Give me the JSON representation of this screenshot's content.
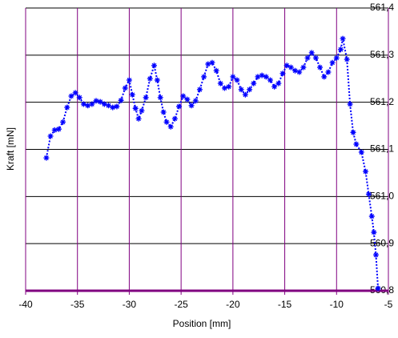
{
  "chart_data": {
    "type": "line",
    "x_label": "Position [mm]",
    "y_label": "Kraft [mN]",
    "x": [
      -38,
      -37.6,
      -37.2,
      -36.8,
      -36.4,
      -36.0,
      -35.6,
      -35.2,
      -34.8,
      -34.4,
      -34.0,
      -33.6,
      -33.2,
      -32.8,
      -32.4,
      -32.0,
      -31.6,
      -31.2,
      -30.8,
      -30.4,
      -30.0,
      -29.7,
      -29.4,
      -29.1,
      -28.8,
      -28.4,
      -28.0,
      -27.6,
      -27.3,
      -27.0,
      -26.7,
      -26.4,
      -26.0,
      -25.6,
      -25.2,
      -24.8,
      -24.4,
      -24.0,
      -23.6,
      -23.2,
      -22.8,
      -22.4,
      -22.0,
      -21.6,
      -21.2,
      -20.8,
      -20.4,
      -20.0,
      -19.6,
      -19.2,
      -18.8,
      -18.4,
      -18.0,
      -17.6,
      -17.2,
      -16.8,
      -16.4,
      -16.0,
      -15.6,
      -15.2,
      -14.8,
      -14.4,
      -14.0,
      -13.6,
      -13.2,
      -12.8,
      -12.4,
      -12.0,
      -11.6,
      -11.2,
      -10.8,
      -10.4,
      -10.0,
      -9.6,
      -9.4,
      -9.0,
      -8.7,
      -8.4,
      -8.1,
      -7.6,
      -7.2,
      -6.9,
      -6.6,
      -6.4,
      -6.2,
      -6.0
    ],
    "values": [
      561.082,
      561.128,
      561.141,
      561.143,
      561.158,
      561.189,
      561.213,
      561.22,
      561.21,
      561.196,
      561.193,
      561.196,
      561.203,
      561.201,
      561.196,
      561.193,
      561.189,
      561.191,
      561.204,
      561.23,
      561.247,
      561.216,
      561.187,
      561.165,
      561.182,
      561.21,
      561.25,
      561.278,
      561.247,
      561.21,
      561.179,
      561.158,
      561.148,
      561.165,
      561.191,
      561.213,
      561.206,
      561.193,
      561.203,
      561.227,
      561.254,
      561.281,
      561.284,
      561.267,
      561.24,
      561.23,
      561.233,
      561.254,
      561.247,
      561.227,
      561.216,
      561.227,
      561.24,
      561.254,
      561.257,
      561.254,
      561.247,
      561.233,
      561.24,
      561.261,
      561.278,
      561.274,
      561.267,
      561.264,
      561.274,
      561.294,
      561.305,
      561.294,
      561.274,
      561.254,
      561.264,
      561.284,
      561.294,
      561.312,
      561.335,
      561.291,
      561.196,
      561.136,
      561.111,
      561.094,
      561.053,
      561.005,
      560.958,
      560.924,
      560.876,
      560.805
    ],
    "color": "#0000ff",
    "xlim": [
      -40,
      -5
    ],
    "xticks": [
      -40,
      -35,
      -30,
      -25,
      -20,
      -15,
      -10,
      -5
    ],
    "ylim": [
      560.8,
      561.4
    ],
    "yticks": [
      {
        "value": 560.8,
        "label": "560,8"
      },
      {
        "value": 560.9,
        "label": "560,9"
      },
      {
        "value": 561.0,
        "label": "561,0"
      },
      {
        "value": 561.1,
        "label": "561,1"
      },
      {
        "value": 561.2,
        "label": "561,2"
      },
      {
        "value": 561.3,
        "label": "561,3"
      },
      {
        "value": 561.4,
        "label": "561,4"
      }
    ],
    "grid": true
  }
}
